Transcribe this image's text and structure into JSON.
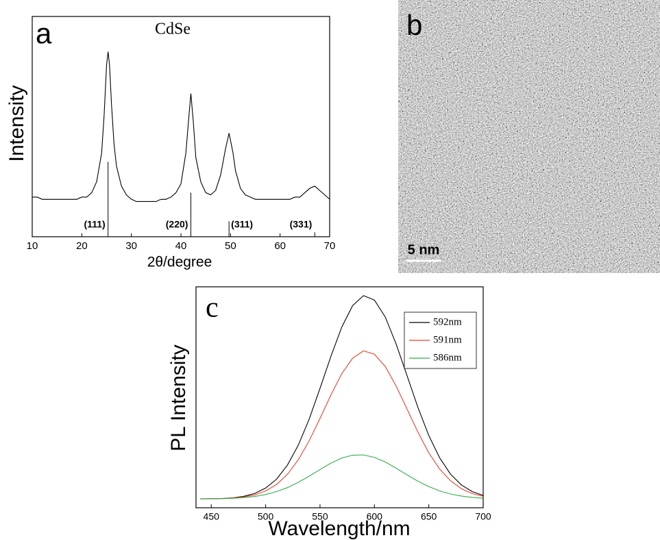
{
  "chart_data": [
    {
      "type": "line",
      "panel": "a",
      "title": "CdSe",
      "xlabel": "2θ/degree",
      "ylabel": "Intensity",
      "color": "#000000",
      "x": [
        10,
        11,
        12,
        13,
        14,
        15,
        16,
        17,
        18,
        19,
        20,
        21,
        22,
        23,
        24,
        24.5,
        25,
        25.3,
        25.6,
        26,
        26.5,
        27,
        28,
        29,
        30,
        31,
        32,
        33,
        34,
        35,
        36,
        37,
        38,
        39,
        40,
        41,
        41.5,
        42,
        42.5,
        43,
        44,
        45,
        46,
        47,
        48,
        49,
        49.7,
        50.5,
        51,
        52,
        53,
        54,
        55,
        56,
        57,
        58,
        59,
        60,
        61,
        62,
        63,
        64,
        65,
        66,
        67,
        68,
        69,
        70
      ],
      "values": [
        18,
        18,
        17,
        17,
        17,
        17,
        17,
        17,
        17,
        17,
        18,
        18,
        20,
        25,
        38,
        55,
        78,
        84,
        78,
        60,
        42,
        32,
        23,
        19,
        17,
        16,
        16,
        16,
        16,
        16,
        17,
        17,
        18,
        20,
        24,
        38,
        52,
        65,
        52,
        36,
        25,
        20,
        19,
        21,
        28,
        40,
        47,
        38,
        30,
        22,
        19,
        18,
        17,
        17,
        17,
        17,
        17,
        17,
        17,
        17,
        18,
        18,
        20,
        22,
        23,
        21,
        19,
        17
      ],
      "reflections": {
        "x": [
          25.3,
          42,
          49.7,
          67
        ],
        "heights": [
          34,
          20,
          7,
          2
        ],
        "labels": [
          "(111)",
          "(220)",
          "(311)",
          "(331)"
        ]
      },
      "xlim": [
        10,
        70
      ],
      "ylim": [
        0,
        100
      ],
      "xticks": [
        10,
        20,
        30,
        40,
        50,
        60,
        70
      ]
    },
    {
      "type": "image",
      "panel": "b",
      "scale_bar": "5 nm"
    },
    {
      "type": "line",
      "panel": "c",
      "xlabel": "Wavelength/nm",
      "ylabel": "PL Intensity",
      "legend": "upper right",
      "x": [
        440,
        450,
        460,
        470,
        480,
        490,
        500,
        510,
        520,
        530,
        540,
        550,
        560,
        570,
        580,
        590,
        600,
        610,
        620,
        630,
        640,
        650,
        660,
        670,
        680,
        690,
        700
      ],
      "series": [
        {
          "name": "592nm",
          "color": "#000000",
          "values": [
            4,
            4.1,
            4.2,
            4.5,
            5.2,
            6.5,
            8.9,
            12.9,
            19.3,
            28.3,
            40.1,
            54,
            68.5,
            81.8,
            91.5,
            96,
            94,
            86.3,
            74.1,
            59.8,
            45.4,
            32.7,
            22.6,
            15.2,
            10.3,
            7.3,
            5.6
          ]
        },
        {
          "name": "591nm",
          "color": "#e8402a",
          "values": [
            4,
            4.1,
            4.2,
            4.4,
            4.9,
            5.8,
            7.6,
            10.5,
            15.1,
            21.7,
            30.3,
            40.4,
            51,
            60.7,
            67.7,
            71,
            69.5,
            63.9,
            55.1,
            44.7,
            34.2,
            24.9,
            17.5,
            12.2,
            8.6,
            6.4,
            5.2
          ]
        },
        {
          "name": "586nm",
          "color": "#2fae4a",
          "values": [
            4,
            4.1,
            4.1,
            4.3,
            4.6,
            5.1,
            6,
            7.3,
            9.1,
            11.5,
            14.3,
            17.3,
            20.2,
            22.5,
            23.8,
            23.9,
            22.8,
            20.7,
            17.9,
            14.9,
            12,
            9.6,
            7.6,
            6.2,
            5.3,
            4.7,
            4.3
          ]
        }
      ],
      "xlim": [
        436,
        700
      ],
      "ylim": [
        0,
        100
      ],
      "xticks": [
        450,
        500,
        550,
        600,
        650,
        700
      ]
    }
  ]
}
